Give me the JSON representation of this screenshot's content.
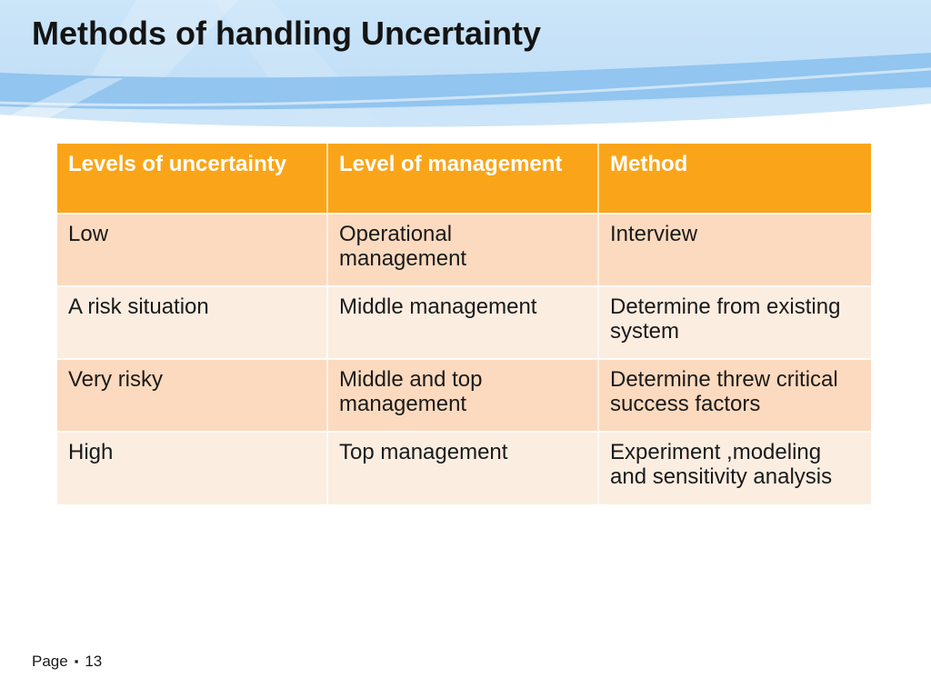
{
  "slide": {
    "title": "Methods of handling Uncertainty",
    "footer": {
      "label": "Page",
      "bullet": "▪",
      "page_number": "13"
    }
  },
  "table": {
    "headers": [
      "Levels of uncertainty",
      "Level of management",
      "Method"
    ],
    "rows": [
      [
        "Low",
        "Operational management",
        "Interview"
      ],
      [
        "A risk situation",
        "Middle management",
        "Determine from existing system"
      ],
      [
        "Very risky",
        "Middle and top management",
        "Determine threw critical success factors"
      ],
      [
        "High",
        "Top management",
        "Experiment ,modeling and sensitivity analysis"
      ]
    ]
  },
  "colors": {
    "accent_orange": "#FAA519",
    "row_band_dark": "#FBDABF",
    "row_band_light": "#FCEDE1",
    "header_text": "#FFFFFF",
    "body_text": "#1A1A1A",
    "sky_top": "#CBE5F9",
    "sky_mid": "#BDDCF5",
    "wave_blue": "#8FC3EE"
  }
}
